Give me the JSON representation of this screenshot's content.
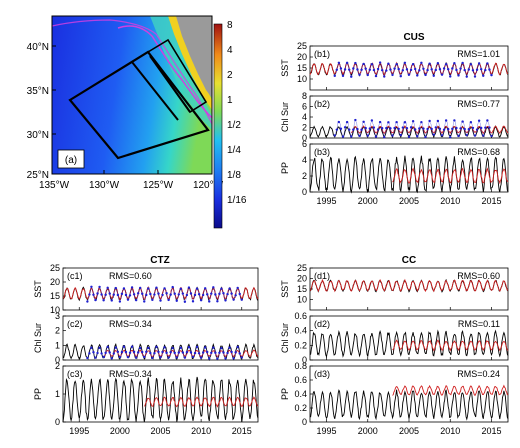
{
  "colors": {
    "observed": "#1f1fd0",
    "model": "#000000",
    "satellite": "#d02020",
    "land": "#9a9a9a",
    "box": "#000000"
  },
  "map": {
    "label": "(a)",
    "lon_ticks": [
      "135°W",
      "130°W",
      "125°W",
      "120°W"
    ],
    "lat_ticks": [
      "40°N",
      "35°N",
      "30°N",
      "25°N"
    ],
    "colorbar_labels": [
      "8",
      "4",
      "2",
      "1",
      "1/2",
      "1/4",
      "1/8",
      "1/16"
    ]
  },
  "panels": {
    "cus": {
      "title": "CUS"
    },
    "ctz": {
      "title": "CTZ"
    },
    "cc": {
      "title": "CC"
    }
  },
  "chart_data": [
    {
      "type": "line",
      "id": "b1",
      "label": "(b1)",
      "group": "CUS",
      "ylabel": "SST",
      "rms": "RMS=1.01",
      "xlim": [
        1993,
        2017
      ],
      "ylim": [
        5,
        25
      ],
      "yticks": [
        10,
        15,
        20,
        25
      ],
      "xticks": [
        1995,
        2000,
        2005,
        2010,
        2015
      ],
      "series": [
        {
          "role": "model",
          "mean": 14.5,
          "amp": 2.5,
          "years": [
            1993,
            2017
          ]
        },
        {
          "role": "satellite",
          "mean": 14.6,
          "amp": 2.4,
          "years": [
            1993,
            2017
          ]
        },
        {
          "role": "observed",
          "mean": 14.3,
          "amp": 2.8,
          "years": [
            1996,
            2015
          ],
          "markers": true
        }
      ]
    },
    {
      "type": "line",
      "id": "b2",
      "label": "(b2)",
      "group": "CUS",
      "ylabel": "Chl Sur",
      "rms": "RMS=0.77",
      "xlim": [
        1993,
        2017
      ],
      "ylim": [
        0,
        8
      ],
      "yticks": [
        0,
        2,
        4,
        6,
        8
      ],
      "xticks": [
        1995,
        2000,
        2005,
        2010,
        2015
      ],
      "series": [
        {
          "role": "model",
          "mean": 1.2,
          "amp": 0.9,
          "years": [
            1993,
            2017
          ]
        },
        {
          "role": "satellite",
          "mean": 1.6,
          "amp": 0.6,
          "years": [
            1998,
            2017
          ]
        },
        {
          "role": "observed",
          "mean": 1.8,
          "amp": 1.4,
          "years": [
            1996,
            2015
          ],
          "markers": true
        }
      ]
    },
    {
      "type": "line",
      "id": "b3",
      "label": "(b3)",
      "group": "CUS",
      "ylabel": "PP",
      "rms": "RMS=0.68",
      "xlim": [
        1993,
        2017
      ],
      "ylim": [
        0,
        6
      ],
      "yticks": [
        0,
        2,
        4,
        6
      ],
      "xticks": [
        1995,
        2000,
        2005,
        2010,
        2015
      ],
      "series": [
        {
          "role": "model",
          "mean": 2.2,
          "amp": 2.0,
          "years": [
            1993,
            2017
          ]
        },
        {
          "role": "satellite",
          "mean": 2.0,
          "amp": 0.8,
          "years": [
            2003,
            2017
          ]
        }
      ]
    },
    {
      "type": "line",
      "id": "c1",
      "label": "(c1)",
      "group": "CTZ",
      "ylabel": "SST",
      "rms": "RMS=0.60",
      "xlim": [
        1993,
        2017
      ],
      "ylim": [
        10,
        25
      ],
      "yticks": [
        10,
        15,
        20,
        25
      ],
      "xticks": [
        1995,
        2000,
        2005,
        2010,
        2015
      ],
      "series": [
        {
          "role": "model",
          "mean": 15.8,
          "amp": 2.0,
          "years": [
            1993,
            2017
          ]
        },
        {
          "role": "satellite",
          "mean": 15.9,
          "amp": 1.9,
          "years": [
            1993,
            2017
          ]
        },
        {
          "role": "observed",
          "mean": 15.6,
          "amp": 2.3,
          "years": [
            1996,
            2015
          ],
          "markers": true
        }
      ]
    },
    {
      "type": "line",
      "id": "c2",
      "label": "(c2)",
      "group": "CTZ",
      "ylabel": "Chl Sur",
      "rms": "RMS=0.34",
      "xlim": [
        1993,
        2017
      ],
      "ylim": [
        0,
        3
      ],
      "yticks": [
        0,
        1,
        2,
        3
      ],
      "xticks": [
        1995,
        2000,
        2005,
        2010,
        2015
      ],
      "series": [
        {
          "role": "model",
          "mean": 0.55,
          "amp": 0.45,
          "years": [
            1993,
            2017
          ]
        },
        {
          "role": "satellite",
          "mean": 0.45,
          "amp": 0.2,
          "years": [
            1998,
            2017
          ]
        },
        {
          "role": "observed",
          "mean": 0.5,
          "amp": 0.35,
          "years": [
            1996,
            2015
          ],
          "markers": true
        }
      ]
    },
    {
      "type": "line",
      "id": "c3",
      "label": "(c3)",
      "group": "CTZ",
      "ylabel": "PP",
      "rms": "RMS=0.34",
      "xlim": [
        1993,
        2017
      ],
      "ylim": [
        0,
        2
      ],
      "yticks": [
        0,
        1,
        2
      ],
      "xticks": [
        1995,
        2000,
        2005,
        2010,
        2015
      ],
      "series": [
        {
          "role": "model",
          "mean": 0.8,
          "amp": 0.7,
          "years": [
            1993,
            2017
          ]
        },
        {
          "role": "satellite",
          "mean": 0.72,
          "amp": 0.15,
          "years": [
            2003,
            2017
          ]
        }
      ]
    },
    {
      "type": "line",
      "id": "d1",
      "label": "(d1)",
      "group": "CC",
      "ylabel": "SST",
      "rms": "RMS=0.60",
      "xlim": [
        1993,
        2017
      ],
      "ylim": [
        5,
        25
      ],
      "yticks": [
        10,
        15,
        20,
        25
      ],
      "xticks": [
        1995,
        2000,
        2005,
        2010,
        2015
      ],
      "series": [
        {
          "role": "model",
          "mean": 16.5,
          "amp": 2.4,
          "years": [
            1993,
            2017
          ]
        },
        {
          "role": "satellite",
          "mean": 16.6,
          "amp": 2.3,
          "years": [
            1993,
            2017
          ]
        }
      ]
    },
    {
      "type": "line",
      "id": "d2",
      "label": "(d2)",
      "group": "CC",
      "ylabel": "Chl Sur",
      "rms": "RMS=0.11",
      "xlim": [
        1993,
        2017
      ],
      "ylim": [
        0,
        0.6
      ],
      "yticks": [
        0,
        0.2,
        0.4,
        0.6
      ],
      "xticks": [
        1995,
        2000,
        2005,
        2010,
        2015
      ],
      "series": [
        {
          "role": "model",
          "mean": 0.22,
          "amp": 0.15,
          "years": [
            1993,
            2017
          ]
        },
        {
          "role": "satellite",
          "mean": 0.2,
          "amp": 0.06,
          "years": [
            2003,
            2017
          ]
        }
      ]
    },
    {
      "type": "line",
      "id": "d3",
      "label": "(d3)",
      "group": "CC",
      "ylabel": "PP",
      "rms": "RMS=0.24",
      "xlim": [
        1993,
        2017
      ],
      "ylim": [
        0,
        0.8
      ],
      "yticks": [
        0,
        0.2,
        0.4,
        0.6,
        0.8
      ],
      "xticks": [
        1995,
        2000,
        2005,
        2010,
        2015
      ],
      "series": [
        {
          "role": "model",
          "mean": 0.25,
          "amp": 0.18,
          "years": [
            1993,
            2017
          ]
        },
        {
          "role": "satellite",
          "mean": 0.45,
          "amp": 0.06,
          "years": [
            2003,
            2017
          ]
        }
      ]
    }
  ]
}
